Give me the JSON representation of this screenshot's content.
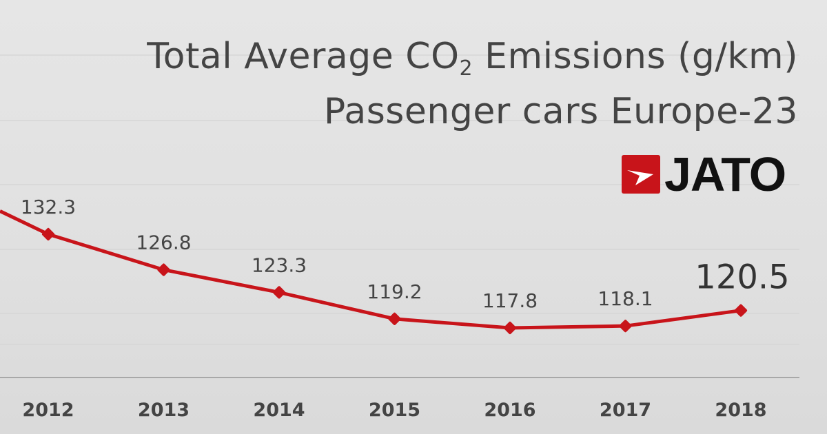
{
  "chart_data": {
    "type": "line",
    "title_line1_prefix": "Total Average CO",
    "title_line1_sub": "2",
    "title_line1_suffix": " Emissions (g/km)",
    "subtitle": "Passenger cars Europe-23",
    "categories": [
      "2012",
      "2013",
      "2014",
      "2015",
      "2016",
      "2017",
      "2018"
    ],
    "values": [
      132.3,
      126.8,
      123.3,
      119.2,
      117.8,
      118.1,
      120.5
    ],
    "labels": [
      "132.3",
      "126.8",
      "123.3",
      "119.2",
      "117.8",
      "118.1",
      "120.5"
    ],
    "series_color": "#c8141a",
    "grid": true,
    "highlight_last": true
  },
  "logo": {
    "text": "JATO",
    "color": "#c8141a"
  }
}
